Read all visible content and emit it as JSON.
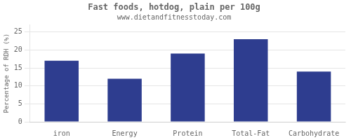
{
  "chart_data": {
    "type": "bar",
    "title": "Fast foods, hotdog, plain per 100g",
    "subtitle": "www.dietandfitnesstoday.com",
    "categories": [
      "iron",
      "Energy",
      "Protein",
      "Total-Fat",
      "Carbohydrate"
    ],
    "values": [
      17,
      12,
      19,
      23,
      14
    ],
    "color": "#2e3d8f",
    "ylabel": "Percentage of RDH (%)",
    "ylim": [
      0,
      27
    ],
    "yticks": [
      0,
      5,
      10,
      15,
      20,
      25
    ],
    "grid": true
  }
}
